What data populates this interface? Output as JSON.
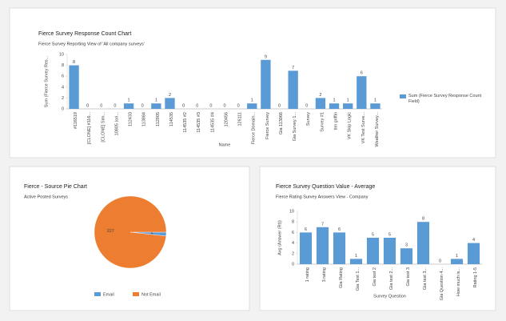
{
  "chart_data": [
    {
      "type": "bar",
      "title": "Fierce Survey Response Count Chart",
      "subtitle": "Fierce Survey Reporting View of 'All company surveys'",
      "y_label": "Sum (Fierce Survey Res...",
      "x_label": "Name",
      "categories": [
        "#116519",
        "[CLONE] #116...",
        "[CLONE] Sim...",
        "10805 (ori...",
        "112433",
        "113884",
        "112905",
        "114535",
        "114535 #2",
        "114535 #3",
        "114535 #4",
        "120456",
        "126111",
        "Fierce Domain...",
        "Fierce Survey",
        "Gia 113066",
        "Gia Survey 1...",
        "Survey",
        "Survey #1",
        "tim griffin",
        "VK Skip Logic",
        "VK Test Surve...",
        "Weather Survey..."
      ],
      "series": [
        {
          "name": "Sum (Fierce Survey Response Count Field)",
          "color": "#5b9bd5",
          "values": [
            8,
            0,
            0,
            0,
            1,
            0,
            1,
            2,
            0,
            0,
            0,
            0,
            0,
            1,
            9,
            0,
            7,
            0,
            2,
            1,
            1,
            6,
            1
          ]
        }
      ],
      "ylim": [
        0,
        10
      ],
      "yticks": [
        0,
        2,
        4,
        6,
        8,
        10
      ],
      "grid": false,
      "legend": "right"
    },
    {
      "type": "pie",
      "title": "Fierce - Source Pie Chart",
      "subtitle": "Active Posted Surveys",
      "categories": [
        "Email",
        "Not Email"
      ],
      "values": [
        4,
        227
      ],
      "colors": [
        "#5b9bd5",
        "#ed7d31"
      ],
      "legend": "bottom"
    },
    {
      "type": "bar",
      "title": "Fierce Survey Question Value - Average",
      "subtitle": "Fierce Rating Survey Answers View - Company",
      "y_label": "Avg (Answer (Rt))",
      "x_label": "Survey Question",
      "categories": [
        "1 rating",
        "3 rating",
        "Gia Rating",
        "Gia Test 1...",
        "Gia test 2",
        "Gia test 2...",
        "Gia test 3",
        "Gia test 3...",
        "Gia Question 4...",
        "How much is...",
        "Rating 1-5"
      ],
      "series": [
        {
          "name": null,
          "color": "#5b9bd5",
          "values": [
            6,
            7,
            6,
            1,
            5,
            5,
            3,
            8,
            0,
            1,
            4
          ]
        }
      ],
      "ylim": [
        0,
        10
      ],
      "yticks": [
        0,
        2,
        4,
        6,
        8,
        10
      ],
      "grid": false,
      "legend": null
    }
  ]
}
